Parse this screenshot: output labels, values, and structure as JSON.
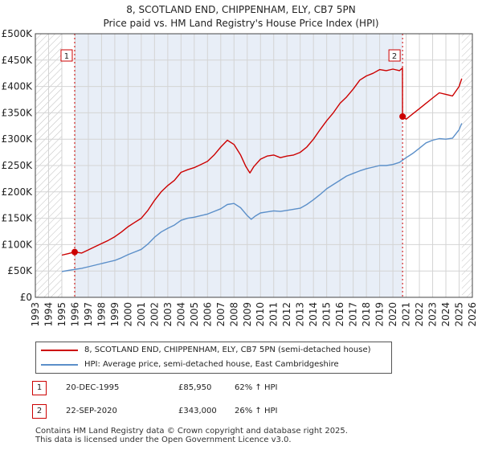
{
  "title_line1": "8, SCOTLAND END, CHIPPENHAM, ELY, CB7 5PN",
  "title_line2": "Price paid vs. HM Land Registry's House Price Index (HPI)",
  "colors": {
    "price_line": "#cc0000",
    "hpi_line": "#5b8fc9",
    "marker": "#cc0000",
    "grid": "#d4d4d4",
    "hatch": "#bfbfbf",
    "shade": "#e8eef7"
  },
  "chart_data": {
    "type": "line",
    "title": "8, SCOTLAND END, CHIPPENHAM, ELY, CB7 5PN — Price paid vs. HM Land Registry's House Price Index (HPI)",
    "xlim": [
      1993,
      2026
    ],
    "ylim": [
      0,
      500000
    ],
    "x_ticks": [
      "1993",
      "1994",
      "1995",
      "1996",
      "1997",
      "1998",
      "1999",
      "2000",
      "2001",
      "2002",
      "2003",
      "2004",
      "2005",
      "2006",
      "2007",
      "2008",
      "2009",
      "2010",
      "2011",
      "2012",
      "2013",
      "2014",
      "2015",
      "2016",
      "2017",
      "2018",
      "2019",
      "2020",
      "2021",
      "2022",
      "2023",
      "2024",
      "2025",
      "2026"
    ],
    "y_ticks": [
      {
        "value": 0,
        "label": "£0"
      },
      {
        "value": 50000,
        "label": "£50K"
      },
      {
        "value": 100000,
        "label": "£100K"
      },
      {
        "value": 150000,
        "label": "£150K"
      },
      {
        "value": 200000,
        "label": "£200K"
      },
      {
        "value": 250000,
        "label": "£250K"
      },
      {
        "value": 300000,
        "label": "£300K"
      },
      {
        "value": 350000,
        "label": "£350K"
      },
      {
        "value": 400000,
        "label": "£400K"
      },
      {
        "value": 450000,
        "label": "£450K"
      },
      {
        "value": 500000,
        "label": "£500K"
      }
    ],
    "data_range": [
      1995.0,
      2025.2
    ],
    "shaded_span": [
      1995.97,
      2020.73
    ],
    "series": [
      {
        "name": "8, SCOTLAND END, CHIPPENHAM, ELY, CB7 5PN (semi-detached house)",
        "color": "#cc0000",
        "x": [
          1995.0,
          1995.5,
          1995.97,
          1996.5,
          1997.0,
          1997.5,
          1998.0,
          1998.5,
          1999.0,
          1999.5,
          2000.0,
          2000.5,
          2001.0,
          2001.5,
          2002.0,
          2002.5,
          2003.0,
          2003.5,
          2004.0,
          2004.5,
          2005.0,
          2005.5,
          2006.0,
          2006.5,
          2007.0,
          2007.5,
          2008.0,
          2008.5,
          2008.9,
          2009.2,
          2009.5,
          2010.0,
          2010.5,
          2011.0,
          2011.5,
          2012.0,
          2012.5,
          2013.0,
          2013.5,
          2014.0,
          2014.5,
          2015.0,
          2015.5,
          2016.0,
          2016.5,
          2017.0,
          2017.5,
          2018.0,
          2018.5,
          2019.0,
          2019.5,
          2020.0,
          2020.5,
          2020.72,
          2020.73,
          2021.0,
          2021.5,
          2022.0,
          2022.5,
          2023.0,
          2023.5,
          2024.0,
          2024.5,
          2025.0,
          2025.2
        ],
        "values": [
          80000,
          83000,
          85950,
          84000,
          90000,
          96000,
          102000,
          108000,
          115000,
          124000,
          134000,
          142000,
          150000,
          165000,
          184000,
          200000,
          212000,
          222000,
          237000,
          242000,
          246000,
          252000,
          258000,
          270000,
          285000,
          298000,
          290000,
          270000,
          248000,
          236000,
          248000,
          262000,
          268000,
          270000,
          265000,
          268000,
          270000,
          275000,
          285000,
          300000,
          318000,
          335000,
          350000,
          368000,
          380000,
          395000,
          412000,
          420000,
          425000,
          432000,
          430000,
          433000,
          430000,
          435000,
          343000,
          338000,
          348000,
          358000,
          368000,
          378000,
          388000,
          385000,
          382000,
          400000,
          415000
        ]
      },
      {
        "name": "HPI: Average price, semi-detached house, East Cambridgeshire",
        "color": "#5b8fc9",
        "x": [
          1995.0,
          1995.5,
          1996.0,
          1996.5,
          1997.0,
          1997.5,
          1998.0,
          1998.5,
          1999.0,
          1999.5,
          2000.0,
          2000.5,
          2001.0,
          2001.5,
          2002.0,
          2002.5,
          2003.0,
          2003.5,
          2004.0,
          2004.5,
          2005.0,
          2005.5,
          2006.0,
          2006.5,
          2007.0,
          2007.5,
          2008.0,
          2008.5,
          2009.0,
          2009.3,
          2009.6,
          2010.0,
          2010.5,
          2011.0,
          2011.5,
          2012.0,
          2012.5,
          2013.0,
          2013.5,
          2014.0,
          2014.5,
          2015.0,
          2015.5,
          2016.0,
          2016.5,
          2017.0,
          2017.5,
          2018.0,
          2018.5,
          2019.0,
          2019.5,
          2020.0,
          2020.5,
          2021.0,
          2021.5,
          2022.0,
          2022.5,
          2023.0,
          2023.5,
          2024.0,
          2024.5,
          2025.0,
          2025.2
        ],
        "values": [
          49000,
          51000,
          53000,
          55000,
          58000,
          61000,
          64000,
          67000,
          70000,
          75000,
          81000,
          86000,
          91000,
          101000,
          114000,
          124000,
          131000,
          137000,
          146000,
          150000,
          152000,
          155000,
          158000,
          163000,
          168000,
          176000,
          178000,
          170000,
          155000,
          148000,
          154000,
          160000,
          162000,
          164000,
          163000,
          165000,
          167000,
          169000,
          176000,
          185000,
          195000,
          206000,
          214000,
          222000,
          230000,
          235000,
          240000,
          244000,
          247000,
          250000,
          250000,
          252000,
          256000,
          265000,
          273000,
          283000,
          293000,
          298000,
          301000,
          300000,
          302000,
          318000,
          330000
        ]
      }
    ],
    "markers": [
      {
        "label": "1",
        "x": 1995.97,
        "y": 85950
      },
      {
        "label": "2",
        "x": 2020.73,
        "y": 343000
      }
    ]
  },
  "legend": {
    "series1": "8, SCOTLAND END, CHIPPENHAM, ELY, CB7 5PN (semi-detached house)",
    "series2": "HPI: Average price, semi-detached house, East Cambridgeshire"
  },
  "transactions": [
    {
      "num": "1",
      "date": "20-DEC-1995",
      "price": "£85,950",
      "hpi": "62% ↑ HPI"
    },
    {
      "num": "2",
      "date": "22-SEP-2020",
      "price": "£343,000",
      "hpi": "26% ↑ HPI"
    }
  ],
  "footer_line1": "Contains HM Land Registry data © Crown copyright and database right 2025.",
  "footer_line2": "This data is licensed under the Open Government Licence v3.0."
}
